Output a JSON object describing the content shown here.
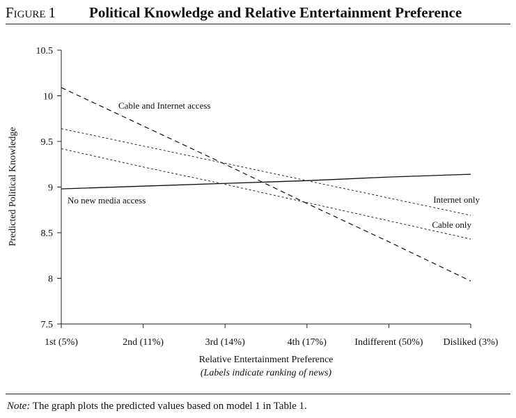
{
  "figure": {
    "label": "Figure",
    "number": "1",
    "title": "Political Knowledge and Relative Entertainment Preference"
  },
  "note": {
    "prefix": "Note:",
    "text": " The graph plots the predicted values based on model 1 in Table 1."
  },
  "chart_data": {
    "type": "line",
    "title": "Political Knowledge and Relative Entertainment Preference",
    "xlabel": "Relative Entertainment Preference",
    "xlabel_sub": "(Labels indicate ranking of news)",
    "ylabel": "Predicted Political Knowledge",
    "categories": [
      "1st (5%)",
      "2nd (11%)",
      "3rd (14%)",
      "4th (17%)",
      "Indifferent (50%)",
      "Disliked (3%)"
    ],
    "yticks": [
      "7.5",
      "8",
      "8.5",
      "9",
      "9.5",
      "10",
      "10.5"
    ],
    "ylim": [
      7.5,
      10.5
    ],
    "grid": false,
    "series": [
      {
        "name": "Cable and Internet access",
        "style": "long-dash",
        "values": [
          10.09,
          9.67,
          9.25,
          8.82,
          8.4,
          7.97
        ]
      },
      {
        "name": "Internet only",
        "style": "short-dash",
        "values": [
          9.64,
          9.45,
          9.26,
          9.07,
          8.88,
          8.69
        ]
      },
      {
        "name": "Cable only",
        "style": "short-dash",
        "values": [
          9.42,
          9.22,
          9.03,
          8.83,
          8.63,
          8.43
        ]
      },
      {
        "name": "No new media access",
        "style": "solid",
        "values": [
          8.98,
          9.01,
          9.04,
          9.07,
          9.11,
          9.14
        ]
      }
    ]
  }
}
